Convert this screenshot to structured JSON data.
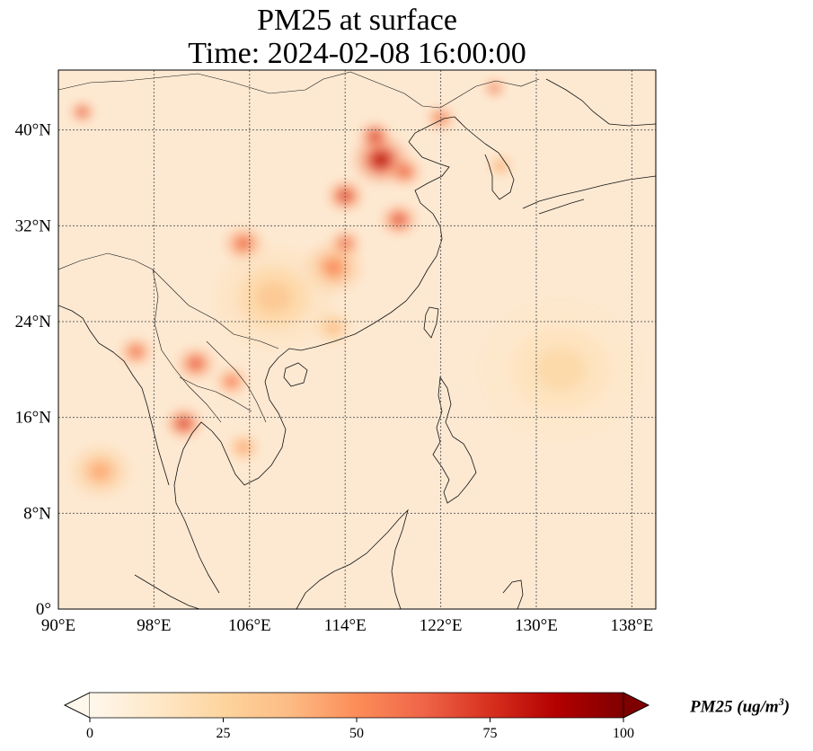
{
  "title": {
    "line1": "PM25 at surface",
    "line2": "Time: 2024-02-08 16:00:00"
  },
  "map": {
    "variable": "PM25",
    "extent": {
      "lon": [
        90,
        140
      ],
      "lat": [
        0,
        45
      ]
    },
    "lon_ticks": [
      {
        "value": 90,
        "label": "90°E"
      },
      {
        "value": 98,
        "label": "98°E"
      },
      {
        "value": 106,
        "label": "106°E"
      },
      {
        "value": 114,
        "label": "114°E"
      },
      {
        "value": 122,
        "label": "122°E"
      },
      {
        "value": 130,
        "label": "130°E"
      },
      {
        "value": 138,
        "label": "138°E"
      }
    ],
    "lat_ticks": [
      {
        "value": 0,
        "label": "0°"
      },
      {
        "value": 8,
        "label": "8°N"
      },
      {
        "value": 16,
        "label": "16°N"
      },
      {
        "value": 24,
        "label": "24°N"
      },
      {
        "value": 32,
        "label": "32°N"
      },
      {
        "value": 40,
        "label": "40°N"
      }
    ],
    "gridlines": true,
    "colormap": "OrRd",
    "hotspots": [
      {
        "name": "north-china-plain",
        "lon": 117,
        "lat": 37.5,
        "level": 100,
        "spread": 2.2
      },
      {
        "name": "beijing-hebei",
        "lon": 116.5,
        "lat": 39.5,
        "level": 95,
        "spread": 1.2
      },
      {
        "name": "shandong",
        "lon": 119,
        "lat": 36.5,
        "level": 80,
        "spread": 1.3
      },
      {
        "name": "henan",
        "lon": 114,
        "lat": 34.5,
        "level": 90,
        "spread": 1.4
      },
      {
        "name": "anhui-jiangsu",
        "lon": 118.5,
        "lat": 32.5,
        "level": 85,
        "spread": 1.4
      },
      {
        "name": "hubei",
        "lon": 114,
        "lat": 30.5,
        "level": 80,
        "spread": 1.2
      },
      {
        "name": "sichuan-basin",
        "lon": 105.5,
        "lat": 30.5,
        "level": 75,
        "spread": 1.6
      },
      {
        "name": "hunan-jiangxi",
        "lon": 113,
        "lat": 28.5,
        "level": 60,
        "spread": 2.4
      },
      {
        "name": "liaoning",
        "lon": 122,
        "lat": 41,
        "level": 75,
        "spread": 1.1
      },
      {
        "name": "northeast-china",
        "lon": 126.5,
        "lat": 43.5,
        "level": 80,
        "spread": 0.8
      },
      {
        "name": "korea-peninsula",
        "lon": 127,
        "lat": 37,
        "level": 55,
        "spread": 1.0
      },
      {
        "name": "xinjiang-strip",
        "lon": 92,
        "lat": 41.5,
        "level": 90,
        "spread": 0.9
      },
      {
        "name": "myanmar",
        "lon": 96.5,
        "lat": 21.5,
        "level": 75,
        "spread": 1.3
      },
      {
        "name": "northern-laos",
        "lon": 101.5,
        "lat": 20.5,
        "level": 80,
        "spread": 1.5
      },
      {
        "name": "laos-vietnam",
        "lon": 104.5,
        "lat": 19,
        "level": 70,
        "spread": 1.3
      },
      {
        "name": "thailand-north",
        "lon": 100.5,
        "lat": 15.5,
        "level": 90,
        "spread": 1.4
      },
      {
        "name": "cambodia",
        "lon": 105.5,
        "lat": 13.5,
        "level": 55,
        "spread": 1.3
      },
      {
        "name": "guangdong",
        "lon": 113,
        "lat": 23.5,
        "level": 45,
        "spread": 1.5
      },
      {
        "name": "bay-of-bengal-plume",
        "lon": 93.5,
        "lat": 11.5,
        "level": 50,
        "spread": 2.5
      },
      {
        "name": "south-china-background",
        "lon": 108,
        "lat": 26,
        "level": 35,
        "spread": 5.0
      },
      {
        "name": "pacific-plume",
        "lon": 132,
        "lat": 20,
        "level": 25,
        "spread": 7.0
      }
    ]
  },
  "colorbar": {
    "min": 0,
    "max": 100,
    "extend": "both",
    "ticks": [
      "0",
      "25",
      "50",
      "75",
      "100"
    ],
    "title_text": "PM25 (ug/m",
    "title_sup": "3",
    "title_close": ")"
  }
}
